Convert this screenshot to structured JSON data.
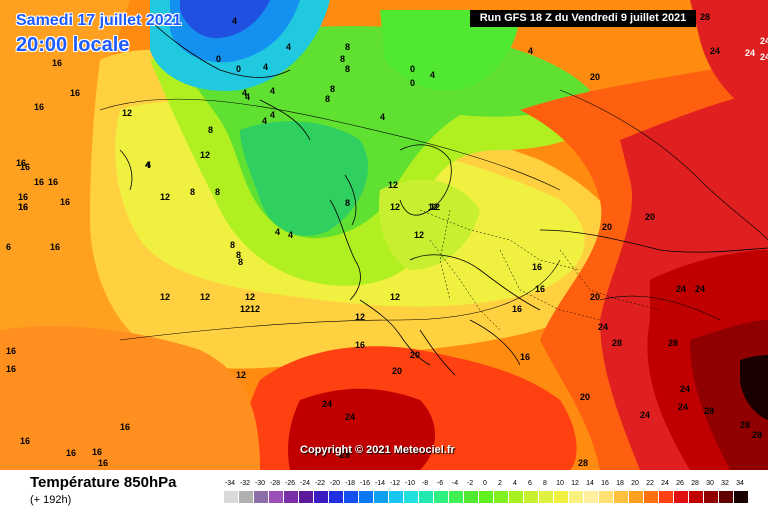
{
  "header": {
    "date": "Samedi 17 juillet 2021",
    "time": "20:00 locale",
    "run": "Run GFS 18 Z du Vendredi 9 juillet 2021"
  },
  "copyright": "Copyright © 2021 Meteociel.fr",
  "legend": {
    "parameter": "Température 850hPa",
    "lead": "(+ 192h)",
    "values": [
      "-34",
      "-32",
      "-30",
      "-28",
      "-26",
      "-24",
      "-22",
      "-20",
      "-18",
      "-16",
      "-14",
      "-12",
      "-10",
      "-8",
      "-6",
      "-4",
      "-2",
      "0",
      "2",
      "4",
      "6",
      "8",
      "10",
      "12",
      "14",
      "16",
      "18",
      "20",
      "22",
      "24",
      "26",
      "28",
      "30",
      "32",
      "34"
    ],
    "colors": [
      "#d9d9d9",
      "#b0b0b0",
      "#8c6ea8",
      "#9b4fb8",
      "#7a2fa8",
      "#5c1a9a",
      "#3a1cc0",
      "#2030e0",
      "#1450f0",
      "#0a78f5",
      "#10a0f0",
      "#18c8f0",
      "#20e0e0",
      "#20e8b0",
      "#30f080",
      "#40f050",
      "#50e830",
      "#60f020",
      "#80f020",
      "#a8f020",
      "#c8f030",
      "#e0f040",
      "#f0f040",
      "#f8f080",
      "#fff0a0",
      "#ffe070",
      "#ffc040",
      "#ffa020",
      "#ff7010",
      "#ff4010",
      "#e01010",
      "#c00000",
      "#900000",
      "#600000",
      "#1a0000"
    ]
  },
  "map": {
    "labels": [
      "4",
      "4",
      "0",
      "0",
      "4",
      "8",
      "8",
      "8",
      "4",
      "4",
      "4",
      "4",
      "0",
      "0",
      "4",
      "16",
      "16",
      "16",
      "16",
      "12",
      "12",
      "8",
      "8",
      "8",
      "4",
      "4",
      "4",
      "8",
      "8",
      "12",
      "16",
      "16",
      "16",
      "16",
      "16",
      "16",
      "6",
      "16",
      "12",
      "4",
      "4",
      "12",
      "12",
      "12",
      "12",
      "12",
      "12",
      "12",
      "12",
      "12",
      "12",
      "16",
      "16",
      "16",
      "16",
      "16",
      "20",
      "20",
      "20",
      "20",
      "20",
      "20",
      "24",
      "24",
      "24",
      "24",
      "24",
      "24",
      "28",
      "28",
      "28",
      "28",
      "28",
      "24",
      "24",
      "28",
      "28",
      "28",
      "16",
      "16",
      "16",
      "16",
      "16",
      "16",
      "16",
      "12",
      "12",
      "4",
      "8",
      "8",
      "8",
      "8",
      "4",
      "16",
      "20",
      "24",
      "24",
      "24",
      "24"
    ]
  }
}
